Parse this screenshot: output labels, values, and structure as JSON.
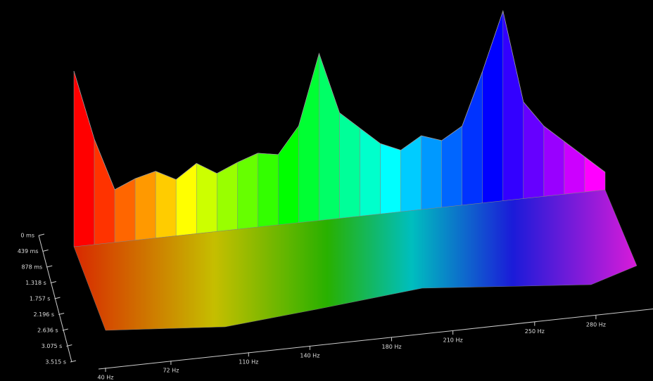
{
  "chart_data": {
    "type": "waterfall",
    "x": [
      40,
      50,
      60,
      70,
      80,
      90,
      100,
      110,
      120,
      130,
      140,
      150,
      160,
      170,
      180,
      190,
      200,
      210,
      220,
      230,
      240,
      250,
      260,
      270,
      280,
      290,
      300
    ],
    "values": [
      100,
      60,
      30,
      35,
      38,
      32,
      40,
      33,
      38,
      42,
      40,
      55,
      95,
      60,
      50,
      40,
      35,
      42,
      38,
      45,
      75,
      108,
      55,
      40,
      30,
      20,
      10
    ],
    "xlim": [
      40,
      300
    ],
    "zlim": [
      0,
      120
    ],
    "xticks": [
      {
        "value": 40,
        "label": "40 Hz"
      },
      {
        "value": 72,
        "label": "72 Hz"
      },
      {
        "value": 110,
        "label": "110 Hz"
      },
      {
        "value": 140,
        "label": "140 Hz"
      },
      {
        "value": 180,
        "label": "180 Hz"
      },
      {
        "value": 210,
        "label": "210 Hz"
      },
      {
        "value": 250,
        "label": "250 Hz"
      },
      {
        "value": 280,
        "label": "280 Hz"
      }
    ],
    "tlim": [
      0,
      3.515
    ],
    "tticks": [
      {
        "value": 0,
        "label": "0 ms"
      },
      {
        "value": 0.439,
        "label": "439 ms"
      },
      {
        "value": 0.878,
        "label": "878 ms"
      },
      {
        "value": 1.318,
        "label": "1.318 s"
      },
      {
        "value": 1.757,
        "label": "1.757 s"
      },
      {
        "value": 2.196,
        "label": "2.196 s"
      },
      {
        "value": 2.636,
        "label": "2.636 s"
      },
      {
        "value": 3.075,
        "label": "3.075 s"
      },
      {
        "value": 3.515,
        "label": "3.515 s"
      }
    ]
  }
}
